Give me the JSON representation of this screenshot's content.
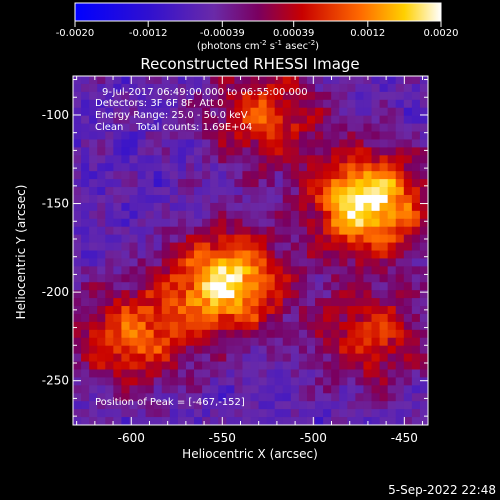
{
  "colorbar": {
    "min": -0.002,
    "max": 0.002,
    "tick_labels": [
      "-0.0020",
      "-0.0012",
      "-0.00039",
      "0.00039",
      "0.0012",
      "0.0020"
    ],
    "units_label": "(photons cm",
    "units_exp1": "-2",
    "units_mid": " s",
    "units_exp2": "-1",
    "units_mid2": " asec",
    "units_exp3": "-2",
    "units_end": ")"
  },
  "plot": {
    "title": "Reconstructed RHESSI Image",
    "xlabel": "Heliocentric X (arcsec)",
    "ylabel": "Heliocentric Y (arcsec)",
    "x_ticks": [
      "-600",
      "-550",
      "-500",
      "-450"
    ],
    "y_ticks": [
      "-100",
      "-150",
      "-200",
      "-250"
    ],
    "info_lines": [
      "9-Jul-2017 06:49:00.000 to 06:55:00.000",
      "Detectors: 3F 6F 8F, Att 0",
      "Energy Range: 25.0 - 50.0 keV",
      "Clean    Total counts: 1.69E+04"
    ],
    "peak_label": "Position of Peak = [-467,-152]"
  },
  "chart_data": {
    "type": "heatmap",
    "title": "Reconstructed RHESSI Image",
    "xlabel": "Heliocentric X (arcsec)",
    "ylabel": "Heliocentric Y (arcsec)",
    "xlim": [
      -632,
      -437
    ],
    "ylim": [
      -275,
      -78
    ],
    "x_ticks": [
      -600,
      -550,
      -500,
      -450
    ],
    "y_ticks": [
      -100,
      -150,
      -200,
      -250
    ],
    "colorbar_range": [
      -0.002,
      0.002
    ],
    "peak": [
      -467,
      -152
    ],
    "sources": [
      {
        "x": -470,
        "y": -150,
        "strength": 1.0
      },
      {
        "x": -548,
        "y": -195,
        "strength": 0.92
      },
      {
        "x": -527,
        "y": -100,
        "strength": 0.55
      },
      {
        "x": -600,
        "y": -225,
        "strength": 0.62
      },
      {
        "x": -468,
        "y": -225,
        "strength": 0.5
      }
    ]
  },
  "footer": {
    "timestamp": "5-Sep-2022 22:48"
  }
}
